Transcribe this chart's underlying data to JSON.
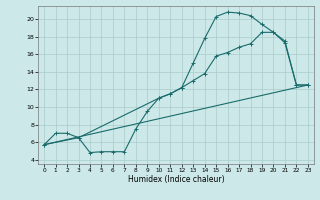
{
  "title": "",
  "xlabel": "Humidex (Indice chaleur)",
  "background_color": "#cce8e8",
  "grid_color": "#aacccc",
  "line_color": "#1a6b6b",
  "xlim": [
    -0.5,
    23.5
  ],
  "ylim": [
    3.5,
    21.5
  ],
  "xticks": [
    0,
    1,
    2,
    3,
    4,
    5,
    6,
    7,
    8,
    9,
    10,
    11,
    12,
    13,
    14,
    15,
    16,
    17,
    18,
    19,
    20,
    21,
    22,
    23
  ],
  "yticks": [
    4,
    6,
    8,
    10,
    12,
    14,
    16,
    18,
    20
  ],
  "curve1_x": [
    0,
    1,
    2,
    3,
    4,
    5,
    6,
    7,
    8,
    9,
    10,
    11,
    12,
    13,
    14,
    15,
    16,
    17,
    18,
    19,
    20,
    21,
    22,
    23
  ],
  "curve1_y": [
    5.7,
    7.0,
    7.0,
    6.5,
    4.8,
    4.9,
    4.9,
    4.9,
    7.5,
    9.5,
    11.0,
    11.5,
    12.2,
    15.0,
    17.8,
    20.3,
    20.8,
    20.7,
    20.4,
    19.4,
    18.5,
    17.3,
    12.5,
    12.5
  ],
  "curve2_x": [
    0,
    3,
    10,
    11,
    12,
    13,
    14,
    15,
    16,
    17,
    18,
    19,
    20,
    21,
    22,
    23
  ],
  "curve2_y": [
    5.7,
    6.5,
    11.0,
    11.5,
    12.2,
    13.0,
    13.8,
    15.8,
    16.2,
    16.8,
    17.2,
    18.5,
    18.5,
    17.5,
    12.5,
    12.5
  ],
  "curve3_x": [
    0,
    23
  ],
  "curve3_y": [
    5.7,
    12.5
  ]
}
